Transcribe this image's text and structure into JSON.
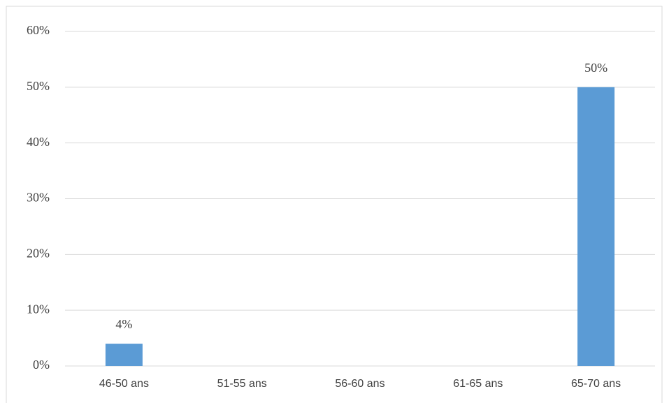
{
  "chart_data": {
    "type": "bar",
    "categories": [
      "46-50 ans",
      "51-55 ans",
      "56-60 ans",
      "61-65 ans",
      "65-70 ans"
    ],
    "values": [
      4,
      null,
      null,
      null,
      50
    ],
    "value_labels": [
      "4%",
      null,
      null,
      null,
      "50%"
    ],
    "color": "#5b9bd5",
    "ylim": [
      0,
      60
    ],
    "yticks": [
      {
        "value": 0,
        "label": "0%"
      },
      {
        "value": 10,
        "label": "10%"
      },
      {
        "value": 20,
        "label": "20%"
      },
      {
        "value": 30,
        "label": "30%"
      },
      {
        "value": 40,
        "label": "40%"
      },
      {
        "value": 50,
        "label": "50%"
      },
      {
        "value": 60,
        "label": "60%"
      }
    ],
    "grid": true
  }
}
